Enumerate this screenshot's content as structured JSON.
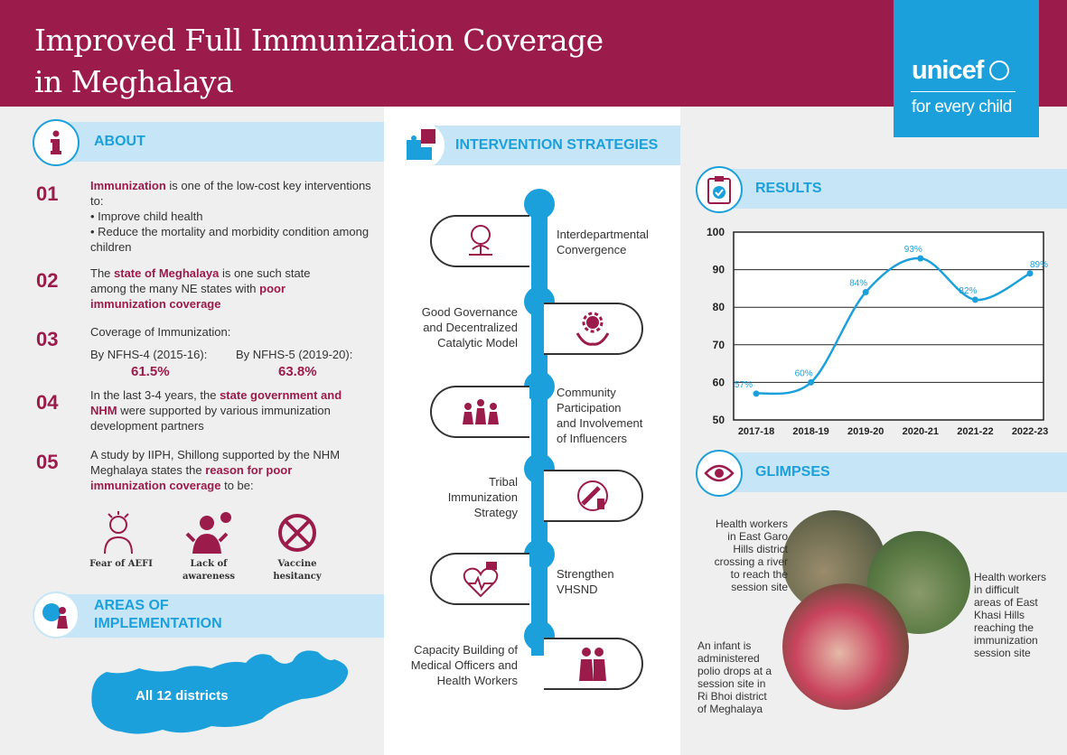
{
  "header": {
    "title_line1": "Improved Full Immunization Coverage",
    "title_line2": "in Meghalaya"
  },
  "brand": {
    "logo": "unicef",
    "tagline": "for every child"
  },
  "about": {
    "heading": "ABOUT",
    "items": [
      {
        "num": "01",
        "bold": "Immunization",
        "rest": " is one of the low-cost key interventions to:",
        "bullet1": "• Improve child health",
        "bullet2": "• Reduce the mortality and morbidity condition among children"
      },
      {
        "num": "02",
        "t1": "The ",
        "b1": "state of Meghalaya",
        "t2": " is one such state among the many NE states with ",
        "b2": "poor immunization coverage"
      },
      {
        "num": "03",
        "t1": "Coverage of Immunization:",
        "nfhs4_label": "By NFHS-4 (2015-16):",
        "nfhs4_value": "61.5%",
        "nfhs5_label": "By NFHS-5 (2019-20):",
        "nfhs5_value": "63.8%"
      },
      {
        "num": "04",
        "t1": "In the last 3-4 years, the ",
        "b1": "state government and NHM",
        "t2": " were supported by various immunization development partners"
      },
      {
        "num": "05",
        "t1": "A study by IIPH, Shillong supported by the NHM Meghalaya states the ",
        "b1": "reason for poor immunization coverage",
        "t2": " to be:"
      }
    ],
    "reasons": [
      {
        "label1": "Fear of AEFI",
        "label2": "",
        "icon": "worried-person-icon"
      },
      {
        "label1": "Lack of",
        "label2": "awareness",
        "icon": "confused-person-icon"
      },
      {
        "label1": "Vaccine",
        "label2": "hesitancy",
        "icon": "no-vaccine-icon"
      }
    ]
  },
  "areas": {
    "heading_line1": "AREAS OF",
    "heading_line2": "IMPLEMENTATION",
    "map_label": "All 12 districts"
  },
  "strategies": {
    "heading": "INTERVENTION STRATEGIES",
    "items": [
      {
        "l1": "Interdepartmental",
        "l2": "Convergence",
        "l3": "",
        "l4": "",
        "icon": "handshake-tree-icon"
      },
      {
        "l1": "Good Governance",
        "l2": "and Decentralized",
        "l3": "Catalytic Model",
        "l4": "",
        "icon": "gear-hands-icon"
      },
      {
        "l1": "Community",
        "l2": "Participation",
        "l3": "and Involvement",
        "l4": "of Influencers",
        "icon": "community-icon"
      },
      {
        "l1": "Tribal",
        "l2": "Immunization",
        "l3": "Strategy",
        "l4": "",
        "icon": "syringe-vial-icon"
      },
      {
        "l1": "Strengthen",
        "l2": "VHSND",
        "l3": "",
        "l4": "",
        "icon": "health-services-icon"
      },
      {
        "l1": "Capacity Building of",
        "l2": "Medical Officers and",
        "l3": "Health Workers",
        "l4": "",
        "icon": "health-workers-icon"
      }
    ]
  },
  "results": {
    "heading": "RESULTS"
  },
  "chart_data": {
    "type": "line",
    "title": "",
    "categories": [
      "2017-18",
      "2018-19",
      "2019-20",
      "2020-21",
      "2021-22",
      "2022-23"
    ],
    "values": [
      57,
      60,
      84,
      93,
      82,
      89
    ],
    "labels": [
      "57%",
      "60%",
      "84%",
      "93%",
      "82%",
      "89%"
    ],
    "yticks": [
      "50",
      "60",
      "70",
      "80",
      "90",
      "100"
    ],
    "ylim": [
      50,
      100
    ],
    "grid": true,
    "color": "#1ca0dc"
  },
  "glimpses": {
    "heading": "GLIMPSES",
    "cap1": [
      "Health workers",
      "in East Garo",
      "Hills district",
      "crossing a river",
      "to reach the",
      "session site"
    ],
    "cap2": [
      "Health workers",
      "in difficult",
      "areas of East",
      "Khasi Hills",
      "reaching the",
      "immunization",
      "session site"
    ],
    "cap3": [
      "An infant is",
      "administered",
      "polio drops at a",
      "session site in",
      "Ri Bhoi district",
      "of Meghalaya"
    ]
  },
  "colors": {
    "maroon": "#9b1b4a",
    "blue": "#1ca0dc",
    "light_blue": "#c6e5f6"
  }
}
